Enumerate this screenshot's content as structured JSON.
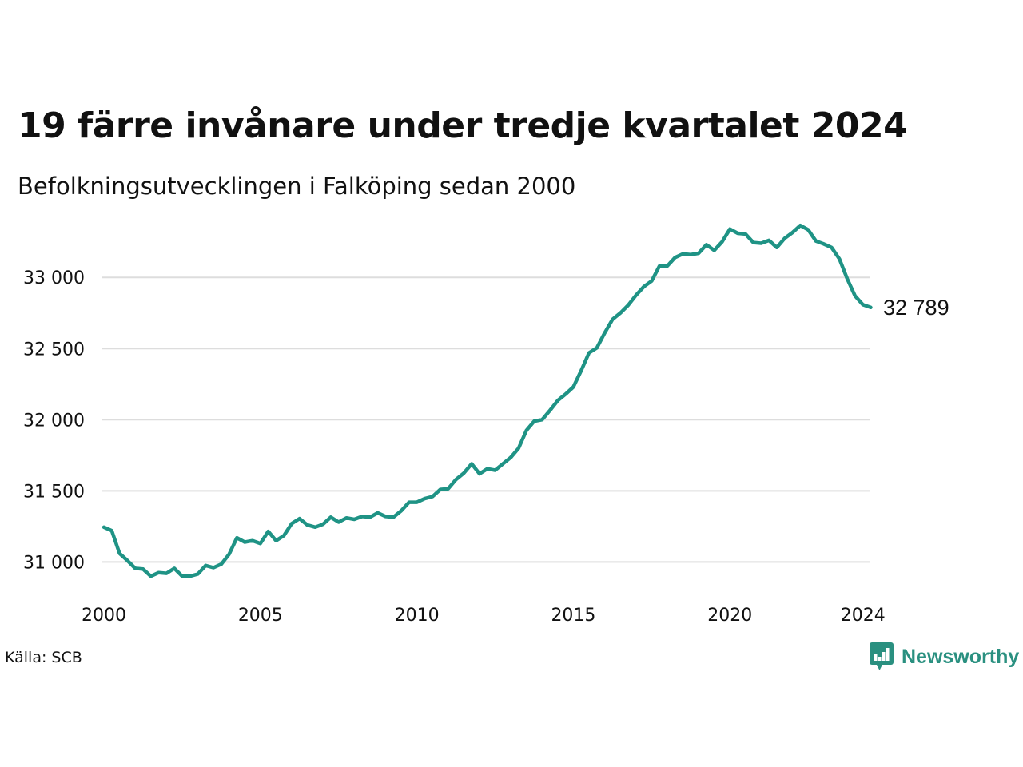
{
  "title": "19 färre invånare under tredje kvartalet 2024",
  "subtitle": "Befolkningsutvecklingen i Falköping sedan 2000",
  "source": "Källa: SCB",
  "brand": "Newsworthy",
  "colors": {
    "line": "#1f9385",
    "grid": "#dddddd",
    "brand": "#2a9080"
  },
  "chart_data": {
    "type": "line",
    "title": "19 färre invånare under tredje kvartalet 2024",
    "subtitle": "Befolkningsutvecklingen i Falköping sedan 2000",
    "xlabel": "",
    "ylabel": "",
    "x_start": 2000.0,
    "x_step": 0.25,
    "xlim": [
      2000,
      2024.5
    ],
    "ylim": [
      30800,
      33400
    ],
    "x_ticks": [
      {
        "value": 2000,
        "label": "2000"
      },
      {
        "value": 2005,
        "label": "2005"
      },
      {
        "value": 2010,
        "label": "2010"
      },
      {
        "value": 2015,
        "label": "2015"
      },
      {
        "value": 2020,
        "label": "2020"
      },
      {
        "value": 2024.25,
        "label": "2024"
      }
    ],
    "y_ticks": [
      {
        "value": 31000,
        "label": "31 000"
      },
      {
        "value": 31500,
        "label": "31 500"
      },
      {
        "value": 32000,
        "label": "32 000"
      },
      {
        "value": 32500,
        "label": "32 500"
      },
      {
        "value": 33000,
        "label": "33 000"
      }
    ],
    "grid": true,
    "end_label": "32 789",
    "series": [
      {
        "values": [
          31245,
          31220,
          31060,
          31010,
          30955,
          30950,
          30900,
          30925,
          30920,
          30955,
          30900,
          30900,
          30915,
          30975,
          30960,
          30985,
          31055,
          31170,
          31140,
          31150,
          31130,
          31215,
          31150,
          31185,
          31270,
          31305,
          31260,
          31245,
          31265,
          31315,
          31280,
          31310,
          31300,
          31320,
          31315,
          31345,
          31320,
          31315,
          31360,
          31420,
          31420,
          31445,
          31460,
          31510,
          31515,
          31580,
          31625,
          31690,
          31620,
          31655,
          31645,
          31690,
          31735,
          31800,
          31925,
          31990,
          32000,
          32065,
          32135,
          32180,
          32230,
          32345,
          32470,
          32505,
          32610,
          32705,
          32750,
          32805,
          32875,
          32935,
          32975,
          33080,
          33080,
          33140,
          33165,
          33160,
          33170,
          33230,
          33190,
          33250,
          33340,
          33310,
          33305,
          33245,
          33240,
          33260,
          33210,
          33275,
          33315,
          33365,
          33335,
          33255,
          33235,
          33210,
          33130,
          32990,
          32870,
          32808,
          32789
        ]
      }
    ]
  }
}
